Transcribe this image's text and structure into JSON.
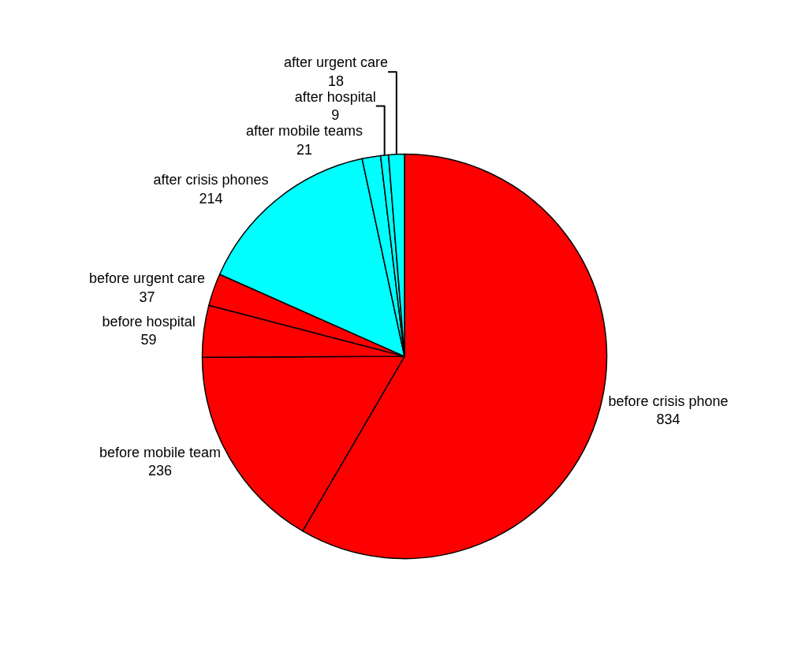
{
  "chart_data": {
    "type": "pie",
    "categories": [
      "before crisis phone",
      "before mobile team",
      "before hospital",
      "before urgent care",
      "after crisis phones",
      "after mobile teams",
      "after hospital",
      "after urgent care"
    ],
    "values": [
      834,
      236,
      59,
      37,
      214,
      21,
      9,
      18
    ],
    "colors": [
      "#ff0000",
      "#ff0000",
      "#ff0000",
      "#ff0000",
      "#00ffff",
      "#00ffff",
      "#00ffff",
      "#00ffff"
    ],
    "data_labels": true,
    "legend": false
  }
}
